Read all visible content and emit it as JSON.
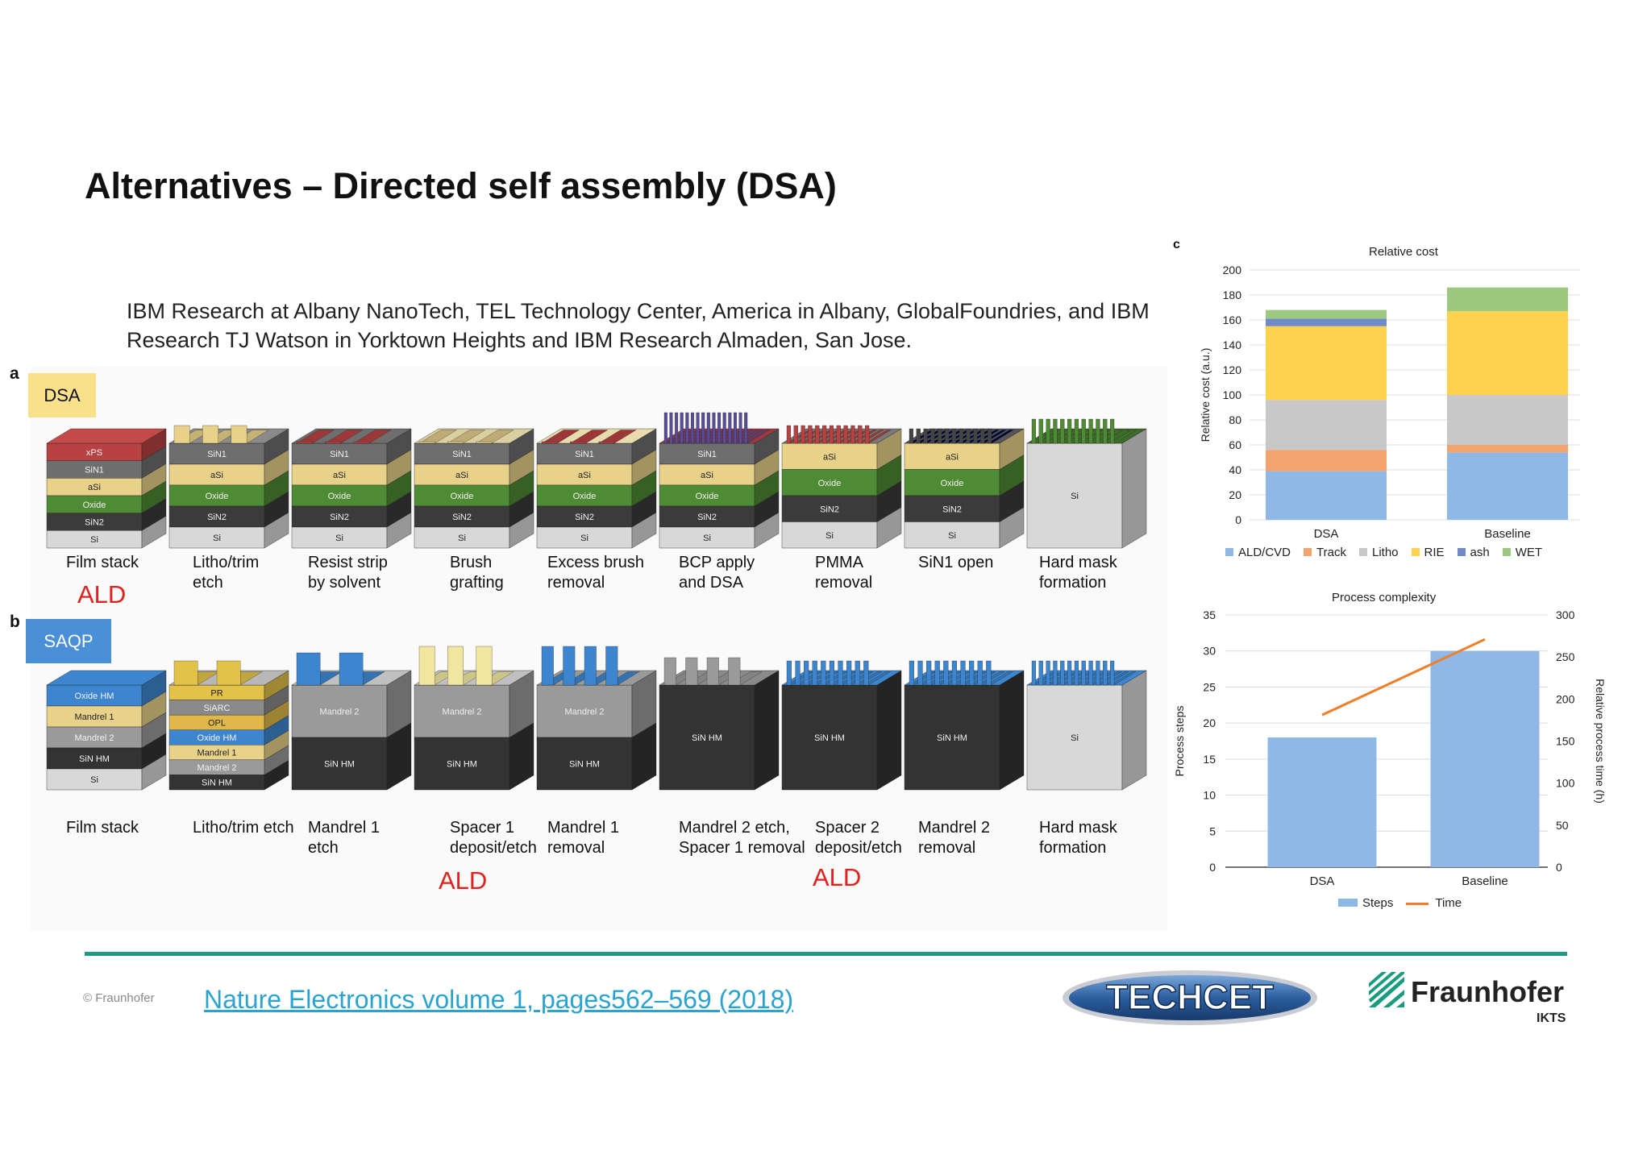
{
  "slide": {
    "title": "Alternatives – Directed self assembly (DSA)",
    "intro": "IBM Research at Albany NanoTech, TEL Technology Center, America in Albany, GlobalFoundries, and IBM Research TJ Watson in Yorktown Heights and IBM Research Almaden, San Jose."
  },
  "figure": {
    "panel_a": {
      "letter": "a",
      "tag": "DSA",
      "tag_color": "#f9e08a",
      "steps": [
        {
          "caption": "Film stack",
          "layers": [
            "xPS",
            "SiN1",
            "aSi",
            "Oxide",
            "SiN2",
            "Si"
          ]
        },
        {
          "caption": "Litho/trim\netch",
          "layers": [
            "SiN1",
            "aSi",
            "Oxide",
            "SiN2",
            "Si"
          ]
        },
        {
          "caption": "Resist strip\nby solvent",
          "layers": [
            "SiN1",
            "aSi",
            "Oxide",
            "SiN2",
            "Si"
          ]
        },
        {
          "caption": "Brush\ngrafting",
          "layers": [
            "SiN1",
            "aSi",
            "Oxide",
            "SiN2",
            "Si"
          ]
        },
        {
          "caption": "Excess brush\nremoval",
          "layers": [
            "SiN1",
            "aSi",
            "Oxide",
            "SiN2",
            "Si"
          ]
        },
        {
          "caption": "BCP apply\nand DSA",
          "layers": [
            "SiN1",
            "aSi",
            "Oxide",
            "SiN2",
            "Si"
          ]
        },
        {
          "caption": "PMMA\nremoval",
          "layers": [
            "aSi",
            "Oxide",
            "SiN2",
            "Si"
          ]
        },
        {
          "caption": "SiN1 open",
          "layers": [
            "aSi",
            "Oxide",
            "SiN2",
            "Si"
          ]
        },
        {
          "caption": "Hard mask\nformation",
          "layers": [
            "Si"
          ]
        }
      ],
      "ald_label": "ALD"
    },
    "panel_b": {
      "letter": "b",
      "tag": "SAQP",
      "tag_color": "#4a90d9",
      "steps": [
        {
          "caption": "Film stack",
          "layers": [
            "Oxide HM",
            "Mandrel 1",
            "Mandrel 2",
            "SiN HM",
            "Si"
          ]
        },
        {
          "caption": "Litho/trim etch",
          "layers": [
            "PR",
            "SiARC",
            "OPL",
            "Oxide HM",
            "Mandrel 1",
            "Mandrel 2",
            "SiN HM"
          ]
        },
        {
          "caption": "Mandrel 1\netch",
          "layers": [
            "Mandrel 2",
            "SiN HM"
          ]
        },
        {
          "caption": "Spacer 1\ndeposit/etch",
          "layers": [
            "Mandrel 2",
            "SiN HM"
          ]
        },
        {
          "caption": "Mandrel 1\nremoval",
          "layers": [
            "Mandrel 2",
            "SiN HM"
          ]
        },
        {
          "caption": "Mandrel 2 etch,\nSpacer 1 removal",
          "layers": [
            "SiN HM"
          ]
        },
        {
          "caption": "Spacer 2\ndeposit/etch",
          "layers": [
            "SiN HM"
          ]
        },
        {
          "caption": "Mandrel 2\nremoval",
          "layers": [
            "SiN HM"
          ]
        },
        {
          "caption": "Hard mask\nformation",
          "layers": [
            "Si"
          ]
        }
      ],
      "ald_labels": [
        "ALD",
        "ALD"
      ]
    },
    "panel_c_letter": "c"
  },
  "chart_data": [
    {
      "type": "bar",
      "stacked": true,
      "title": "Relative cost",
      "ylabel": "Relative cost (a.u.)",
      "categories": [
        "DSA",
        "Baseline"
      ],
      "ylim": [
        0,
        200
      ],
      "yticks": [
        0,
        20,
        40,
        60,
        80,
        100,
        120,
        140,
        160,
        180,
        200
      ],
      "series": [
        {
          "name": "ALD/CVD",
          "color": "#8fb8e6",
          "values": [
            39,
            54
          ]
        },
        {
          "name": "Track",
          "color": "#f2a46e",
          "values": [
            17,
            6
          ]
        },
        {
          "name": "Litho",
          "color": "#c8c8c8",
          "values": [
            40,
            40
          ]
        },
        {
          "name": "RIE",
          "color": "#ffd24d",
          "values": [
            59,
            67
          ]
        },
        {
          "name": "ash",
          "color": "#6f89c9",
          "values": [
            6,
            0
          ]
        },
        {
          "name": "WET",
          "color": "#9cc97f",
          "values": [
            7,
            19
          ]
        }
      ],
      "grid": true,
      "legend_position": "bottom"
    },
    {
      "type": "bar",
      "title": "Process complexity",
      "categories": [
        "DSA",
        "Baseline"
      ],
      "ylabel": "Process steps",
      "ylim": [
        0,
        35
      ],
      "yticks": [
        0,
        5,
        10,
        15,
        20,
        25,
        30,
        35
      ],
      "y2label": "Relative process time (h)",
      "y2lim": [
        0,
        300
      ],
      "y2ticks": [
        0,
        50,
        100,
        150,
        200,
        250,
        300
      ],
      "series": [
        {
          "name": "Steps",
          "type": "bar",
          "axis": "left",
          "color": "#8fb8e6",
          "values": [
            18,
            30
          ]
        },
        {
          "name": "Time",
          "type": "line",
          "axis": "right",
          "color": "#f07f2a",
          "values": [
            181,
            271
          ]
        }
      ],
      "grid": true,
      "legend_position": "bottom"
    }
  ],
  "footer": {
    "copyright": "© Fraunhofer",
    "reference": "Nature Electronics volume 1, pages562–569 (2018)",
    "techcet_logo": "TECHCET",
    "fraunhofer_name": "Fraunhofer",
    "fraunhofer_unit": "IKTS",
    "rule_color": "#1e9a82"
  }
}
